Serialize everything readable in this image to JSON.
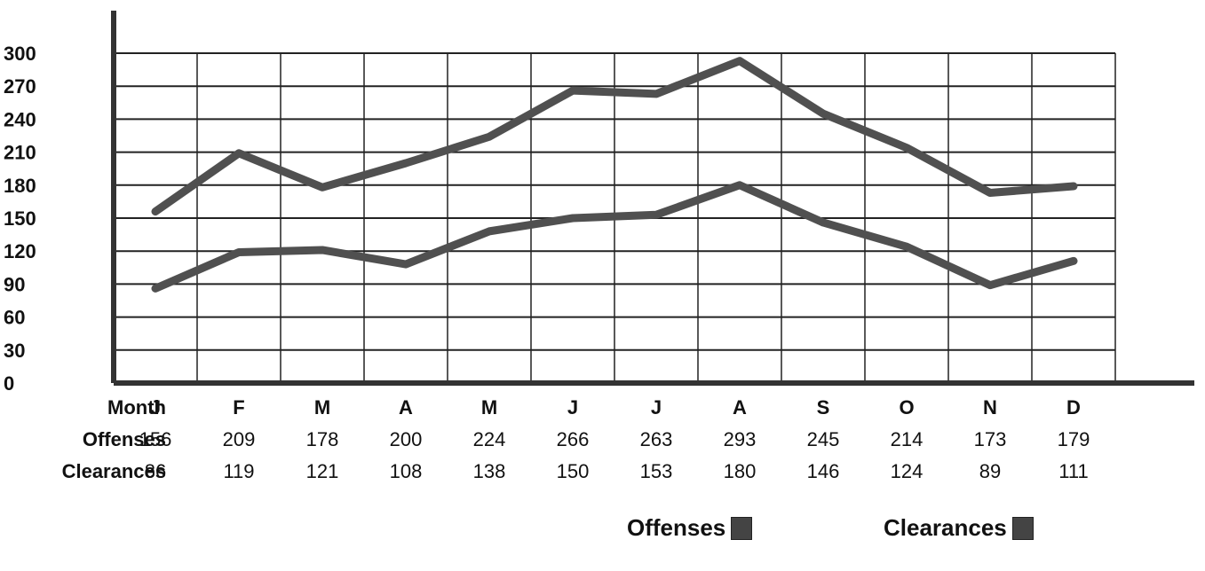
{
  "chart_data": {
    "type": "line",
    "categories": [
      "J",
      "F",
      "M",
      "A",
      "M",
      "J",
      "J",
      "A",
      "S",
      "O",
      "N",
      "D"
    ],
    "series": [
      {
        "name": "Offenses",
        "values": [
          156,
          209,
          178,
          200,
          224,
          266,
          263,
          293,
          245,
          214,
          173,
          179
        ]
      },
      {
        "name": "Clearances",
        "values": [
          86,
          119,
          121,
          108,
          138,
          150,
          153,
          180,
          146,
          124,
          89,
          111
        ]
      }
    ],
    "yticks": [
      "0",
      "30",
      "60",
      "90",
      "120",
      "150",
      "180",
      "210",
      "240",
      "270",
      "300"
    ],
    "ylim": [
      0,
      300
    ],
    "grid": true,
    "table": {
      "row_labels": [
        "Month",
        "Offenses",
        "Clearances"
      ],
      "offenses": [
        "156",
        "209",
        "178",
        "200",
        "224",
        "266",
        "263",
        "293",
        "245",
        "214",
        "173",
        "179"
      ],
      "clearances": [
        "86",
        "119",
        "121",
        "108",
        "138",
        "150",
        "153",
        "180",
        "146",
        "124",
        "89",
        "111"
      ]
    },
    "legend": {
      "position": "bottom-right",
      "entries": [
        "Offenses",
        "Clearances"
      ],
      "color": "#444444"
    },
    "line_color": "#505050",
    "axis_color": "#333333"
  }
}
